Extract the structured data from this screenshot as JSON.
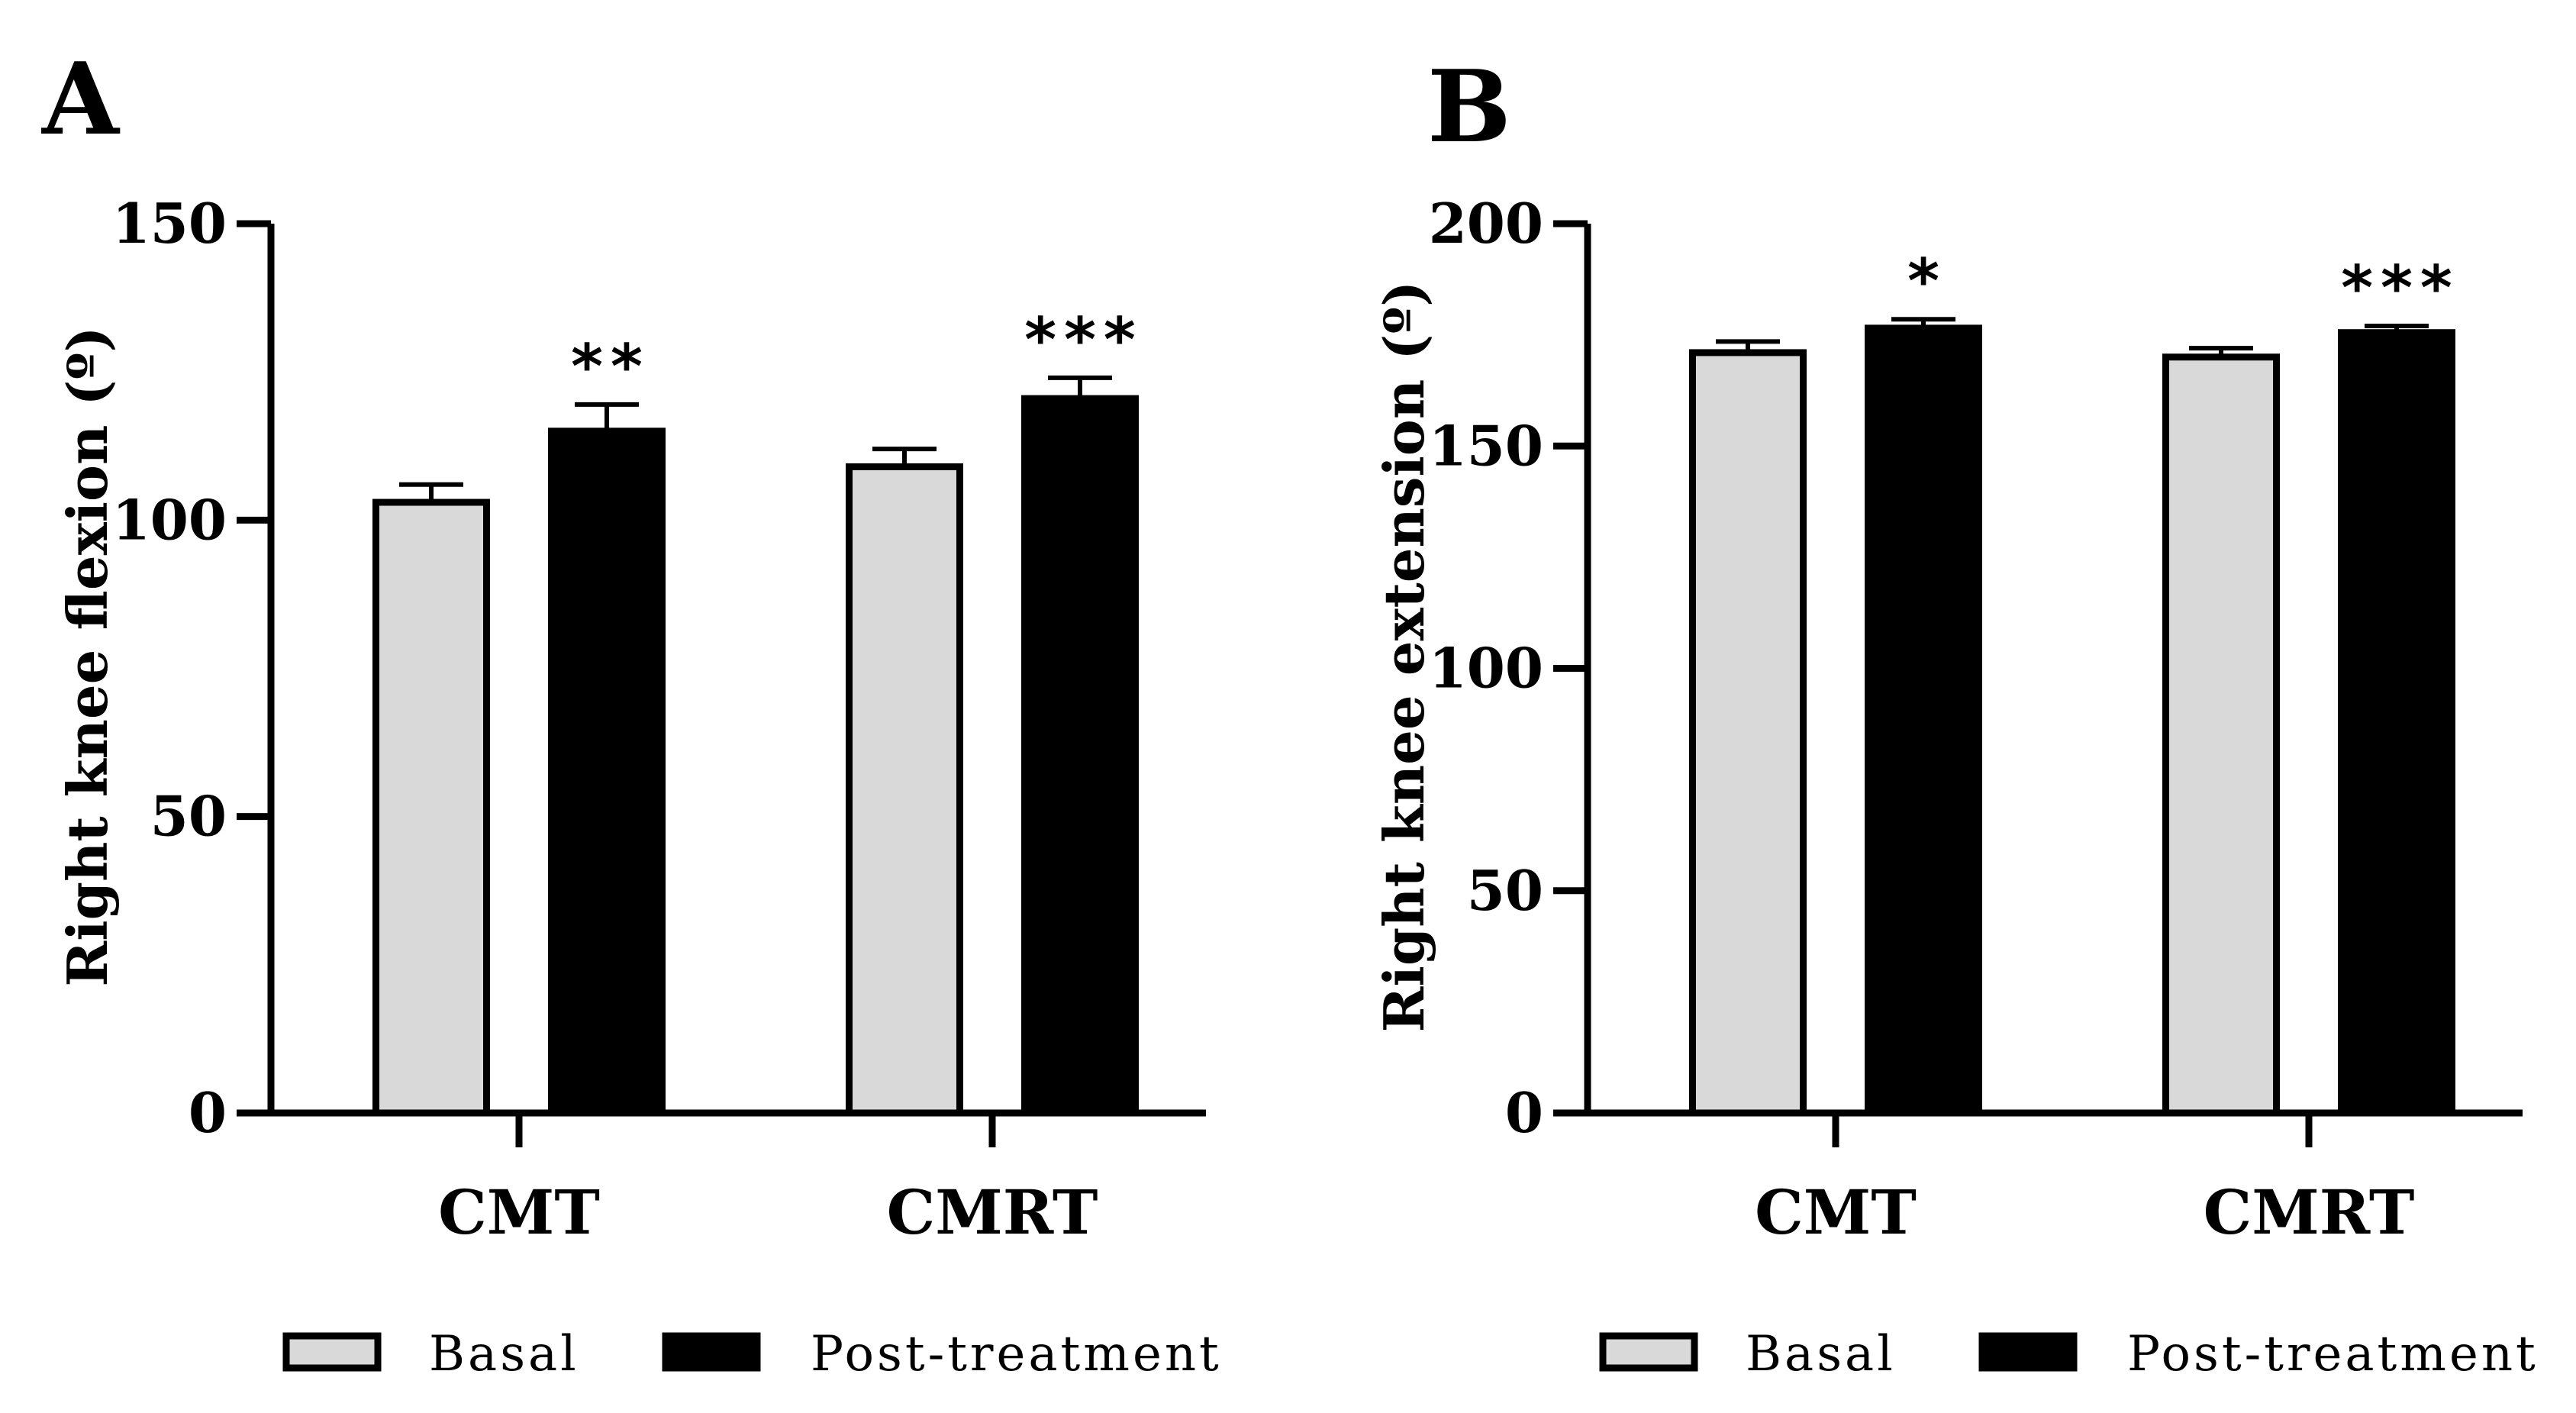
{
  "chart_data": [
    {
      "panel": "A",
      "type": "bar",
      "title": "",
      "xlabel": "",
      "ylabel": "Right knee flexion (º)",
      "categories": [
        "CMT",
        "CMRT"
      ],
      "ylim": [
        0,
        150
      ],
      "yticks": [
        "0",
        "50",
        "100",
        "150"
      ],
      "grid": false,
      "legend_position": "bottom",
      "series": [
        {
          "name": "Basal",
          "color": "#d9d9d9",
          "values": [
            103,
            109
          ],
          "errors": [
            3,
            3
          ]
        },
        {
          "name": "Post-treatment",
          "color": "#000000",
          "values": [
            115,
            120.5
          ],
          "errors": [
            4.5,
            3.5
          ]
        }
      ],
      "annotations": [
        {
          "category": "CMT",
          "series": "Post-treatment",
          "text": "**"
        },
        {
          "category": "CMRT",
          "series": "Post-treatment",
          "text": "***"
        }
      ]
    },
    {
      "panel": "B",
      "type": "bar",
      "title": "",
      "xlabel": "",
      "ylabel": "Right knee extension (º)",
      "categories": [
        "CMT",
        "CMRT"
      ],
      "ylim": [
        0,
        200
      ],
      "yticks": [
        "0",
        "50",
        "100",
        "150",
        "200"
      ],
      "grid": false,
      "legend_position": "bottom",
      "series": [
        {
          "name": "Basal",
          "color": "#d9d9d9",
          "values": [
            171,
            170
          ],
          "errors": [
            2.5,
            2
          ]
        },
        {
          "name": "Post-treatment",
          "color": "#000000",
          "values": [
            176.5,
            175.5
          ],
          "errors": [
            2,
            1.5
          ]
        }
      ],
      "annotations": [
        {
          "category": "CMT",
          "series": "Post-treatment",
          "text": "*"
        },
        {
          "category": "CMRT",
          "series": "Post-treatment",
          "text": "***"
        }
      ]
    }
  ]
}
